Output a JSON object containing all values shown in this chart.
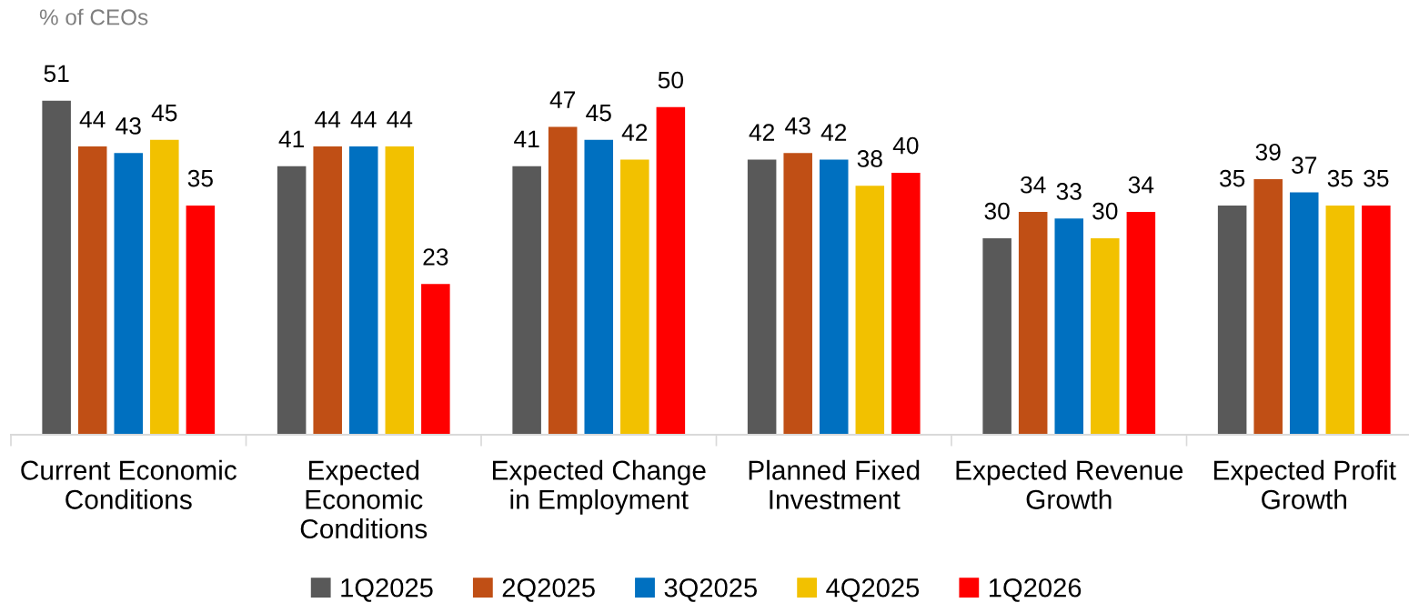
{
  "chart_data": {
    "type": "bar",
    "ylabel": "% of CEOs",
    "categories": [
      "Current Economic\nConditions",
      "Expected\nEconomic\nConditions",
      "Expected Change\nin Employment",
      "Planned Fixed\nInvestment",
      "Expected Revenue\nGrowth",
      "Expected Profit\nGrowth"
    ],
    "series": [
      {
        "name": "1Q2025",
        "color": "#595959",
        "values": [
          51,
          41,
          41,
          42,
          30,
          35
        ]
      },
      {
        "name": "2Q2025",
        "color": "#c04f15",
        "values": [
          44,
          44,
          47,
          43,
          34,
          39
        ]
      },
      {
        "name": "3Q2025",
        "color": "#0070c0",
        "values": [
          43,
          44,
          45,
          42,
          33,
          37
        ]
      },
      {
        "name": "4Q2025",
        "color": "#f2c100",
        "values": [
          45,
          44,
          42,
          38,
          30,
          35
        ]
      },
      {
        "name": "1Q2026",
        "color": "#ff0000",
        "values": [
          35,
          23,
          50,
          40,
          34,
          35
        ]
      }
    ],
    "tick_labels": "x",
    "data_labels": true,
    "grid": false,
    "legend": "bottom"
  }
}
